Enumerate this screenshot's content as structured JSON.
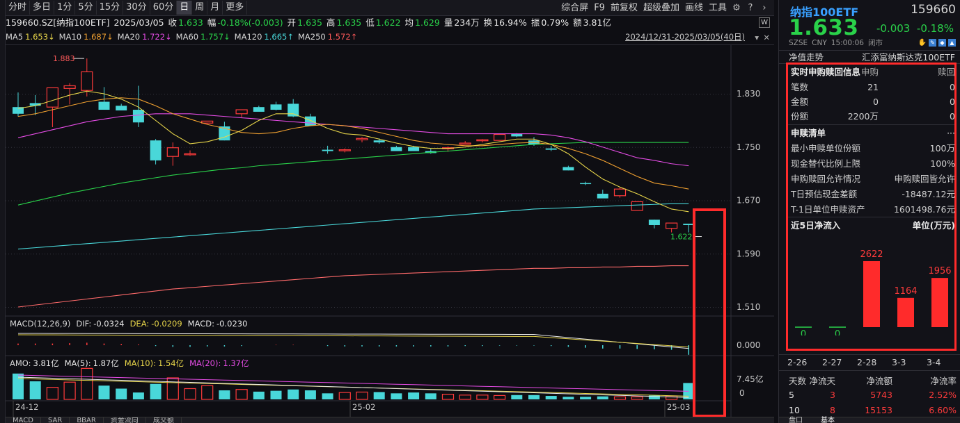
{
  "toolbar": {
    "periods": [
      "分时",
      "多日",
      "1分",
      "5分",
      "15分",
      "30分",
      "60分",
      "日",
      "周",
      "月",
      "更多"
    ],
    "active_period": "日",
    "right_buttons": [
      "综合屏",
      "F9",
      "前复权",
      "超级叠加",
      "画线",
      "工具"
    ]
  },
  "info": {
    "code_name": "159660.SZ[纳指100ETF]",
    "date": "2025/03/05",
    "close_label": "收",
    "close": "1.633",
    "range_label": "幅",
    "range": "-0.18%(-0.003)",
    "open_label": "开",
    "open": "1.635",
    "high_label": "高",
    "high": "1.635",
    "low_label": "低",
    "low": "1.622",
    "avg_label": "均",
    "avg": "1.629",
    "vol_label": "量",
    "vol": "234万",
    "turnover_label": "换",
    "turnover": "16.94%",
    "amp_label": "振",
    "amp": "0.79%",
    "amount_label": "额",
    "amount": "3.81亿"
  },
  "ma": {
    "items": [
      {
        "label": "MA5",
        "value": "1.653↓",
        "color": "#e8d64a"
      },
      {
        "label": "MA10",
        "value": "1.687↓",
        "color": "#f0a030"
      },
      {
        "label": "MA20",
        "value": "1.722↓",
        "color": "#e54ce5"
      },
      {
        "label": "MA60",
        "value": "1.757↓",
        "color": "#2ad24a"
      },
      {
        "label": "MA120",
        "value": "1.665↑",
        "color": "#49d7d9"
      },
      {
        "label": "MA250",
        "value": "1.572↑",
        "color": "#ff5a5a"
      }
    ],
    "range_text": "2024/12/31-2025/03/05(40日)"
  },
  "main_chart": {
    "y_ticks": [
      "1.830",
      "1.750",
      "1.670",
      "1.590",
      "1.510"
    ],
    "high_label": "1.883",
    "low_label": "1.622",
    "x_labels": [
      "24-12",
      "25-02",
      "25-03"
    ]
  },
  "macd": {
    "title": "MACD(12,26,9)",
    "dif_label": "DIF:",
    "dif": "-0.0324",
    "dea_label": "DEA:",
    "dea": "-0.0209",
    "macd_label": "MACD:",
    "macd_value": "-0.0230",
    "y_tick": "0.000"
  },
  "amo": {
    "label": "AMO:",
    "value": "3.81亿",
    "ma5_label": "MA(5):",
    "ma5": "1.87亿",
    "ma10_label": "MA(10):",
    "ma10": "1.54亿",
    "ma20_label": "MA(20):",
    "ma20": "1.37亿",
    "y_top": "7.45亿",
    "y_bottom": "0"
  },
  "bottom_tabs": [
    "MACD",
    "SAR",
    "BBAR",
    "资金流向",
    "成交额"
  ],
  "right_panel": {
    "name": "纳指100ETF",
    "code": "159660",
    "price": "1.633",
    "change": "-0.003",
    "change_pct": "-0.18%",
    "meta": [
      "SZSE",
      "CNY",
      "15:00:06",
      "闭市"
    ],
    "nav_title": "净值走势",
    "fund_name": "汇添富纳斯达克100ETF",
    "realtime": {
      "title": "实时申购赎回信息",
      "col_sub": "申购",
      "col_red": "赎回",
      "rows": [
        {
          "label": "笔数",
          "sub": "21",
          "red": "0"
        },
        {
          "label": "金额",
          "sub": "0",
          "red": "0"
        },
        {
          "label": "份额",
          "sub": "2200万",
          "red": "0"
        }
      ]
    },
    "list": {
      "title": "申赎清单",
      "more": "···",
      "rows": [
        {
          "label": "最小申赎单位份额",
          "value": "100万"
        },
        {
          "label": "现金替代比例上限",
          "value": "100%"
        },
        {
          "label": "申购赎回允许情况",
          "value": "申购赎回皆允许"
        },
        {
          "label": "T日预估现金差额",
          "value": "-18487.12元"
        },
        {
          "label": "T-1日单位申赎资产",
          "value": "1601498.76元"
        }
      ]
    },
    "flow": {
      "title": "近5日净流入",
      "unit": "单位(万元)",
      "dates": [
        "2-26",
        "2-27",
        "2-28",
        "3-3",
        "3-4"
      ],
      "values": [
        0,
        0,
        2622,
        1164,
        1956
      ],
      "labels": [
        "0",
        "0",
        "2622",
        "1164",
        "1956"
      ]
    },
    "stats": {
      "headers": [
        "天数",
        "净流天",
        "净流额",
        "净流率"
      ],
      "rows": [
        {
          "days": "5",
          "flow_days": "3",
          "amount": "5743",
          "rate": "2.52%"
        },
        {
          "days": "10",
          "flow_days": "8",
          "amount": "15153",
          "rate": "6.60%"
        }
      ]
    },
    "bottom_tabs": [
      "盘口",
      "基本"
    ]
  }
}
